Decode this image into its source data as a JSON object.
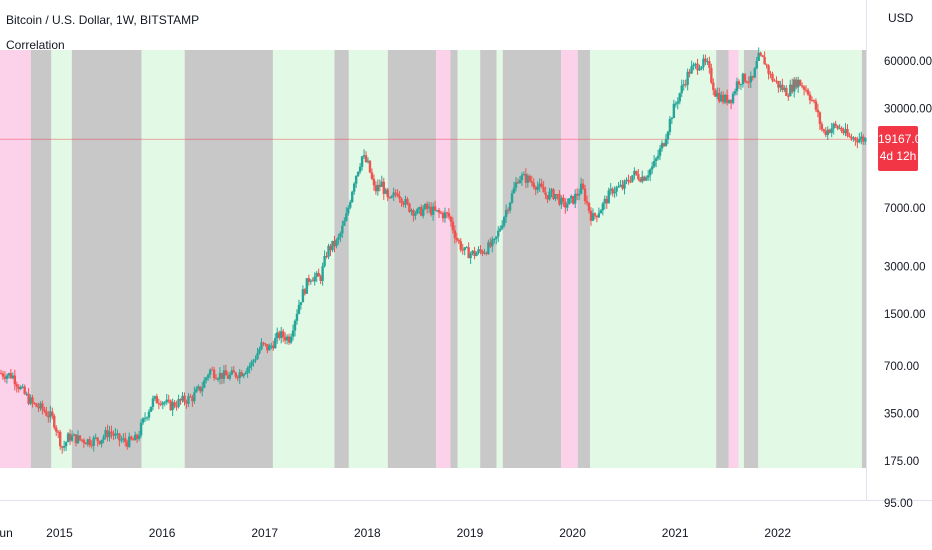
{
  "header": {
    "symbol_title": "Bitcoin / U.S. Dollar, 1W, BITSTAMP",
    "indicator_name": "Correlation",
    "currency": "USD"
  },
  "price_badge": {
    "price": "19167.00",
    "countdown": "4d 12h"
  },
  "colors": {
    "green_band": "#e2f9e5",
    "gray_band": "#c8c8c8",
    "pink_band": "#fcd1ea",
    "up_candle": "#26a69a",
    "down_candle": "#ef5350",
    "price_line": "#f23645"
  },
  "chart_data": {
    "type": "candlestick",
    "y_scale": "log",
    "ylim": [
      95,
      80000
    ],
    "y_ticks": [
      {
        "value": 60000,
        "label": "60000.00"
      },
      {
        "value": 30000,
        "label": "30000.00"
      },
      {
        "value": 7000,
        "label": "7000.00"
      },
      {
        "value": 3000,
        "label": "3000.00"
      },
      {
        "value": 1500,
        "label": "1500.00"
      },
      {
        "value": 700,
        "label": "700.00"
      },
      {
        "value": 350,
        "label": "350.00"
      },
      {
        "value": 175,
        "label": "175.00"
      },
      {
        "value": 95,
        "label": "95.00"
      }
    ],
    "x_range": [
      2014.42,
      2022.86
    ],
    "x_ticks": [
      {
        "value": 2014.45,
        "label": "Jun"
      },
      {
        "value": 2015.0,
        "label": "2015"
      },
      {
        "value": 2016.0,
        "label": "2016"
      },
      {
        "value": 2017.0,
        "label": "2017"
      },
      {
        "value": 2018.0,
        "label": "2018"
      },
      {
        "value": 2019.0,
        "label": "2019"
      },
      {
        "value": 2020.0,
        "label": "2020"
      },
      {
        "value": 2021.0,
        "label": "2021"
      },
      {
        "value": 2022.0,
        "label": "2022"
      }
    ],
    "current_price": 19167,
    "correlation_bands": [
      {
        "from": 2014.42,
        "to": 2014.72,
        "state": "pink"
      },
      {
        "from": 2014.72,
        "to": 2014.92,
        "state": "gray"
      },
      {
        "from": 2014.92,
        "to": 2015.12,
        "state": "green"
      },
      {
        "from": 2015.12,
        "to": 2015.8,
        "state": "gray"
      },
      {
        "from": 2015.8,
        "to": 2016.22,
        "state": "green"
      },
      {
        "from": 2016.22,
        "to": 2017.08,
        "state": "gray"
      },
      {
        "from": 2017.08,
        "to": 2017.68,
        "state": "green"
      },
      {
        "from": 2017.68,
        "to": 2017.82,
        "state": "gray"
      },
      {
        "from": 2017.82,
        "to": 2018.2,
        "state": "green"
      },
      {
        "from": 2018.2,
        "to": 2018.67,
        "state": "gray"
      },
      {
        "from": 2018.67,
        "to": 2018.81,
        "state": "pink"
      },
      {
        "from": 2018.81,
        "to": 2018.88,
        "state": "gray"
      },
      {
        "from": 2018.88,
        "to": 2019.1,
        "state": "green"
      },
      {
        "from": 2019.1,
        "to": 2019.26,
        "state": "gray"
      },
      {
        "from": 2019.26,
        "to": 2019.32,
        "state": "green"
      },
      {
        "from": 2019.32,
        "to": 2019.89,
        "state": "gray"
      },
      {
        "from": 2019.89,
        "to": 2020.05,
        "state": "pink"
      },
      {
        "from": 2020.05,
        "to": 2020.17,
        "state": "gray"
      },
      {
        "from": 2020.17,
        "to": 2021.4,
        "state": "green"
      },
      {
        "from": 2021.4,
        "to": 2021.52,
        "state": "gray"
      },
      {
        "from": 2021.52,
        "to": 2021.62,
        "state": "pink"
      },
      {
        "from": 2021.62,
        "to": 2021.67,
        "state": "green"
      },
      {
        "from": 2021.67,
        "to": 2021.81,
        "state": "gray"
      },
      {
        "from": 2021.81,
        "to": 2022.82,
        "state": "green"
      },
      {
        "from": 2022.82,
        "to": 2022.86,
        "state": "gray"
      }
    ],
    "price_path": [
      [
        2014.42,
        630
      ],
      [
        2014.55,
        610
      ],
      [
        2014.65,
        480
      ],
      [
        2014.75,
        400
      ],
      [
        2014.85,
        370
      ],
      [
        2014.95,
        320
      ],
      [
        2015.04,
        210
      ],
      [
        2015.1,
        250
      ],
      [
        2015.2,
        240
      ],
      [
        2015.3,
        235
      ],
      [
        2015.4,
        240
      ],
      [
        2015.5,
        270
      ],
      [
        2015.58,
        240
      ],
      [
        2015.68,
        230
      ],
      [
        2015.76,
        240
      ],
      [
        2015.84,
        330
      ],
      [
        2015.92,
        420
      ],
      [
        2016.0,
        430
      ],
      [
        2016.08,
        390
      ],
      [
        2016.18,
        415
      ],
      [
        2016.3,
        440
      ],
      [
        2016.4,
        520
      ],
      [
        2016.47,
        660
      ],
      [
        2016.55,
        620
      ],
      [
        2016.65,
        600
      ],
      [
        2016.78,
        640
      ],
      [
        2016.88,
        720
      ],
      [
        2016.98,
        950
      ],
      [
        2017.05,
        900
      ],
      [
        2017.15,
        1100
      ],
      [
        2017.25,
        1050
      ],
      [
        2017.35,
        1800
      ],
      [
        2017.45,
        2600
      ],
      [
        2017.55,
        2500
      ],
      [
        2017.62,
        3800
      ],
      [
        2017.72,
        4300
      ],
      [
        2017.8,
        6000
      ],
      [
        2017.88,
        10500
      ],
      [
        2017.96,
        15000
      ],
      [
        2018.02,
        13000
      ],
      [
        2018.08,
        9000
      ],
      [
        2018.15,
        10000
      ],
      [
        2018.22,
        7500
      ],
      [
        2018.3,
        9000
      ],
      [
        2018.4,
        7200
      ],
      [
        2018.5,
        6500
      ],
      [
        2018.58,
        7000
      ],
      [
        2018.7,
        6500
      ],
      [
        2018.8,
        6300
      ],
      [
        2018.88,
        4500
      ],
      [
        2018.95,
        3700
      ],
      [
        2019.05,
        3600
      ],
      [
        2019.15,
        3800
      ],
      [
        2019.25,
        4200
      ],
      [
        2019.35,
        6500
      ],
      [
        2019.42,
        8500
      ],
      [
        2019.48,
        11000
      ],
      [
        2019.56,
        10800
      ],
      [
        2019.66,
        9800
      ],
      [
        2019.75,
        8500
      ],
      [
        2019.85,
        8600
      ],
      [
        2019.92,
        7200
      ],
      [
        2020.02,
        8000
      ],
      [
        2020.1,
        9500
      ],
      [
        2020.2,
        6000
      ],
      [
        2020.3,
        7200
      ],
      [
        2020.4,
        9200
      ],
      [
        2020.5,
        9500
      ],
      [
        2020.6,
        11500
      ],
      [
        2020.7,
        11000
      ],
      [
        2020.8,
        13000
      ],
      [
        2020.9,
        18500
      ],
      [
        2020.98,
        28000
      ],
      [
        2021.05,
        37000
      ],
      [
        2021.15,
        52000
      ],
      [
        2021.25,
        58000
      ],
      [
        2021.32,
        57000
      ],
      [
        2021.4,
        38000
      ],
      [
        2021.48,
        34000
      ],
      [
        2021.56,
        35000
      ],
      [
        2021.62,
        45000
      ],
      [
        2021.7,
        47000
      ],
      [
        2021.76,
        44000
      ],
      [
        2021.82,
        63000
      ],
      [
        2021.88,
        60000
      ],
      [
        2021.94,
        48000
      ],
      [
        2022.02,
        42000
      ],
      [
        2022.1,
        38000
      ],
      [
        2022.2,
        45000
      ],
      [
        2022.3,
        39000
      ],
      [
        2022.38,
        30000
      ],
      [
        2022.45,
        21000
      ],
      [
        2022.55,
        23000
      ],
      [
        2022.62,
        22500
      ],
      [
        2022.7,
        19500
      ],
      [
        2022.78,
        19500
      ],
      [
        2022.85,
        19167
      ]
    ]
  }
}
